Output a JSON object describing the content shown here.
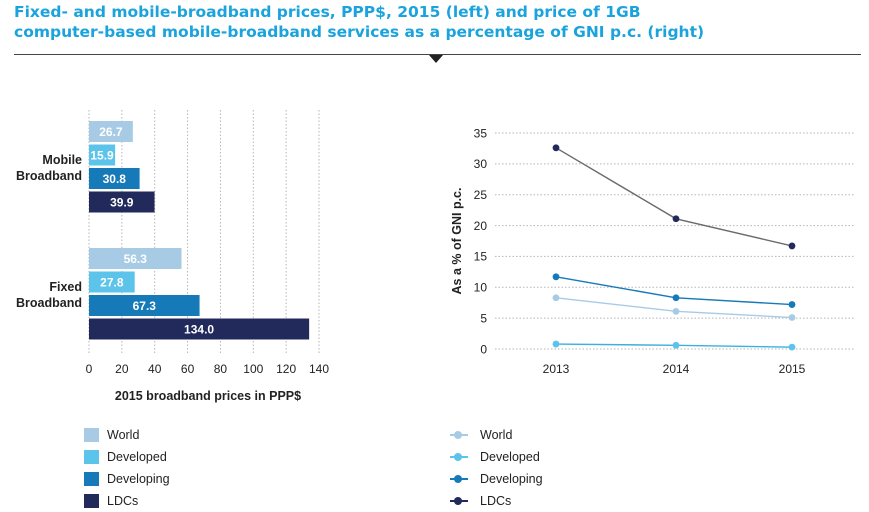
{
  "title": {
    "line1": "Fixed- and mobile-broadband prices, PPP$, 2015 (left) and price of 1GB",
    "line2": "computer-based mobile-broadband services as a percentage of GNI p.c. (right)"
  },
  "colors": {
    "World": "#a8cbe5",
    "Developed": "#5cc3ea",
    "Developing": "#1679b8",
    "LDCs": "#222a5c"
  },
  "chart_data": [
    {
      "type": "bar",
      "orientation": "horizontal",
      "categories": [
        "Mobile\nBroadband",
        "Fixed\nBroadband"
      ],
      "category_lines": [
        [
          "Mobile",
          "Broadband"
        ],
        [
          "Fixed",
          "Broadband"
        ]
      ],
      "series": [
        {
          "name": "World",
          "values": [
            26.7,
            56.3
          ],
          "labels": [
            "26.7",
            "56.3"
          ]
        },
        {
          "name": "Developed",
          "values": [
            15.9,
            27.8
          ],
          "labels": [
            "15.9",
            "27.8"
          ]
        },
        {
          "name": "Developing",
          "values": [
            30.8,
            67.3
          ],
          "labels": [
            "30.8",
            "67.3"
          ]
        },
        {
          "name": "LDCs",
          "values": [
            39.9,
            134.0
          ],
          "labels": [
            "39.9",
            "134.0"
          ]
        }
      ],
      "xlabel": "2015 broadband prices in PPP$",
      "xlim": [
        0,
        140
      ],
      "xticks": [
        0,
        20,
        40,
        60,
        80,
        100,
        120,
        140
      ],
      "grid": "vertical dotted",
      "legend": "bottom"
    },
    {
      "type": "line",
      "x": [
        "2013",
        "2014",
        "2015"
      ],
      "series": [
        {
          "name": "World",
          "values": [
            8.3,
            6.1,
            5.1
          ]
        },
        {
          "name": "Developed",
          "values": [
            0.8,
            0.6,
            0.3
          ]
        },
        {
          "name": "Developing",
          "values": [
            11.7,
            8.3,
            7.2
          ]
        },
        {
          "name": "LDCs",
          "values": [
            32.6,
            21.1,
            16.7
          ]
        }
      ],
      "ylabel": "As a % of GNI p.c.",
      "ylim": [
        0,
        35
      ],
      "yticks": [
        0,
        5,
        10,
        15,
        20,
        25,
        30,
        35
      ],
      "grid": "horizontal dotted",
      "legend": "bottom"
    }
  ]
}
